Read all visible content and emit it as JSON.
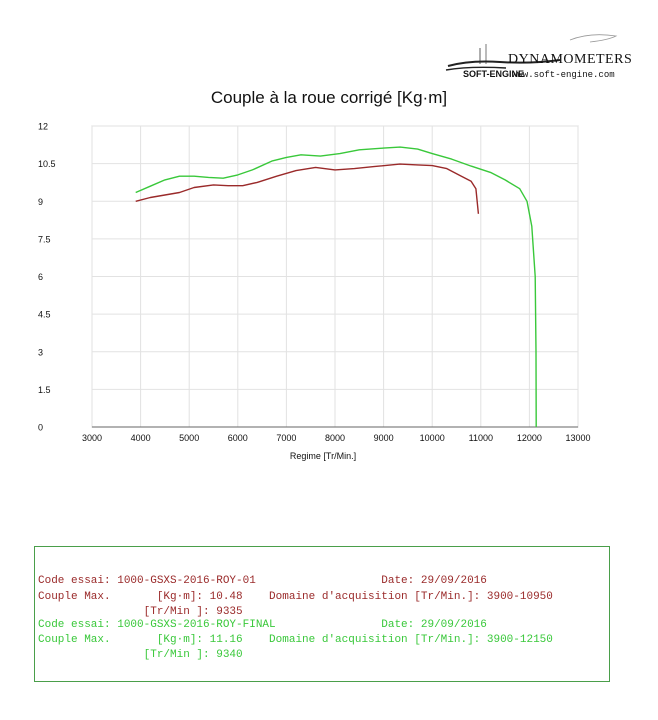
{
  "header": {
    "brand_name": "DYNAMOMETERS",
    "brand_sub": "SOFT-ENGINE",
    "url": "www.soft-engine.com",
    "logo_icon": "dyno-wing-logo-icon"
  },
  "colors": {
    "series_red": "#9a2a2a",
    "series_green": "#39c83a",
    "box_border": "#4a9e4a"
  },
  "chart_data": {
    "type": "line",
    "title": "Couple à la roue corrigé [Kg·m]",
    "xlabel": "Regime [Tr/Min.]",
    "ylabel": "",
    "xlim": [
      3000,
      13000
    ],
    "ylim": [
      0,
      12
    ],
    "x_ticks": [
      "3000",
      "4000",
      "5000",
      "6000",
      "7000",
      "8000",
      "9000",
      "10000",
      "11000",
      "12000",
      "13000"
    ],
    "y_ticks": [
      "0",
      "1.5",
      "3",
      "4.5",
      "6",
      "7.5",
      "9",
      "10.5",
      "12"
    ],
    "grid": true,
    "legend": "none",
    "series": [
      {
        "color": "#9a2a2a",
        "points": [
          [
            3900,
            9.0
          ],
          [
            4200,
            9.15
          ],
          [
            4500,
            9.25
          ],
          [
            4800,
            9.35
          ],
          [
            5100,
            9.55
          ],
          [
            5500,
            9.65
          ],
          [
            5800,
            9.62
          ],
          [
            6100,
            9.62
          ],
          [
            6400,
            9.75
          ],
          [
            6800,
            10.0
          ],
          [
            7200,
            10.22
          ],
          [
            7600,
            10.35
          ],
          [
            8000,
            10.25
          ],
          [
            8400,
            10.3
          ],
          [
            8800,
            10.38
          ],
          [
            9335,
            10.48
          ],
          [
            9700,
            10.45
          ],
          [
            10000,
            10.42
          ],
          [
            10300,
            10.3
          ],
          [
            10600,
            10.0
          ],
          [
            10800,
            9.8
          ],
          [
            10900,
            9.5
          ],
          [
            10950,
            8.5
          ]
        ]
      },
      {
        "color": "#39c83a",
        "points": [
          [
            3900,
            9.35
          ],
          [
            4200,
            9.6
          ],
          [
            4500,
            9.85
          ],
          [
            4800,
            10.0
          ],
          [
            5100,
            10.0
          ],
          [
            5400,
            9.95
          ],
          [
            5700,
            9.92
          ],
          [
            6000,
            10.05
          ],
          [
            6300,
            10.25
          ],
          [
            6700,
            10.6
          ],
          [
            7000,
            10.75
          ],
          [
            7300,
            10.85
          ],
          [
            7700,
            10.8
          ],
          [
            8100,
            10.9
          ],
          [
            8500,
            11.05
          ],
          [
            9000,
            11.12
          ],
          [
            9340,
            11.16
          ],
          [
            9700,
            11.08
          ],
          [
            10000,
            10.9
          ],
          [
            10400,
            10.68
          ],
          [
            10800,
            10.4
          ],
          [
            11200,
            10.15
          ],
          [
            11500,
            9.85
          ],
          [
            11800,
            9.5
          ],
          [
            11950,
            9.0
          ],
          [
            12050,
            8.0
          ],
          [
            12120,
            6.0
          ],
          [
            12135,
            3.0
          ],
          [
            12140,
            0.0
          ]
        ]
      }
    ]
  },
  "info": {
    "rows": [
      {
        "text": "Code essai: 1000-GSXS-2016-ROY-01                   Date: 29/09/2016",
        "color": "red"
      },
      {
        "text": "Couple Max.       [Kg·m]: 10.48    Domaine d'acquisition [Tr/Min.]: 3900-10950",
        "color": "red"
      },
      {
        "text": "                [Tr/Min ]: 9335",
        "color": "red"
      },
      {
        "text": "Code essai: 1000-GSXS-2016-ROY-FINAL                Date: 29/09/2016",
        "color": "green"
      },
      {
        "text": "Couple Max.       [Kg·m]: 11.16    Domaine d'acquisition [Tr/Min.]: 3900-12150",
        "color": "green"
      },
      {
        "text": "                [Tr/Min ]: 9340",
        "color": "green"
      }
    ]
  }
}
